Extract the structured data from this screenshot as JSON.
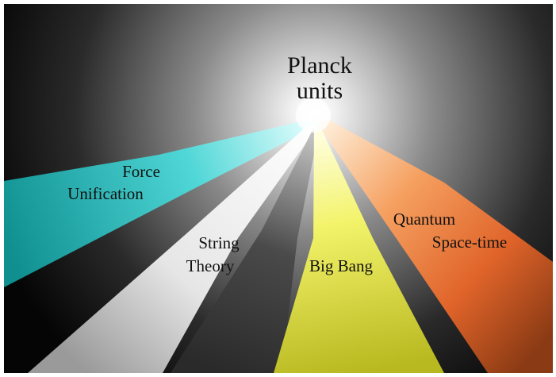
{
  "center": {
    "lines": [
      "Planck",
      "units"
    ]
  },
  "rays": [
    {
      "lines": [
        "Force",
        "Unification"
      ]
    },
    {
      "lines": [
        "String",
        "Theory"
      ]
    },
    {
      "lines": [
        "Big Bang"
      ]
    },
    {
      "lines": [
        "Quantum",
        "Space-time"
      ]
    }
  ]
}
